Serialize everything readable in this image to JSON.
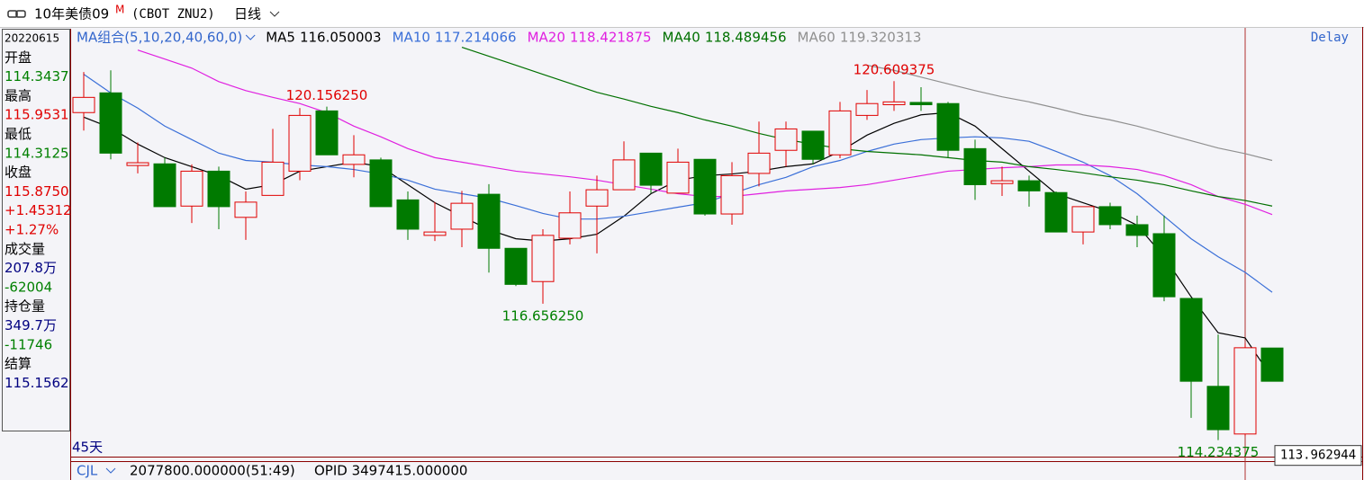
{
  "header": {
    "title": "10年美债09",
    "title_mark": "M",
    "symbol": "(CBOT ZNU2)",
    "period": "日线"
  },
  "info_panel": [
    {
      "text": "20220615",
      "color": "#000000"
    },
    {
      "text": "开盘",
      "color": "#000000"
    },
    {
      "text": "114.3437",
      "color": "#008000"
    },
    {
      "text": "最高",
      "color": "#000000"
    },
    {
      "text": "115.9531",
      "color": "#e00000"
    },
    {
      "text": "最低",
      "color": "#000000"
    },
    {
      "text": "114.3125",
      "color": "#008000"
    },
    {
      "text": "收盘",
      "color": "#000000"
    },
    {
      "text": "115.8750",
      "color": "#e00000"
    },
    {
      "text": "+1.45312",
      "color": "#e00000"
    },
    {
      "text": "+1.27%",
      "color": "#e00000"
    },
    {
      "text": "成交量",
      "color": "#000000"
    },
    {
      "text": "207.8万",
      "color": "#000080"
    },
    {
      "text": "-62004",
      "color": "#008000"
    },
    {
      "text": "持仓量",
      "color": "#000000"
    },
    {
      "text": "349.7万",
      "color": "#000080"
    },
    {
      "text": "-11746",
      "color": "#008000"
    },
    {
      "text": "结算",
      "color": "#000000"
    },
    {
      "text": "115.1562",
      "color": "#000080"
    }
  ],
  "chart_data": {
    "type": "candlestick",
    "ma_group": "MA组合(5,10,20,40,60,0)",
    "ma_group_color": "#3366cc",
    "delay": "Delay",
    "days_label": "45天",
    "up_color": "#e00000",
    "down_color": "#007a00",
    "ylim": [
      113.91,
      121.57
    ],
    "open": [
      120.05,
      120.4,
      119.11,
      119.14,
      118.39,
      119.01,
      118.19,
      118.58,
      119.01,
      120.08,
      119.13,
      119.21,
      118.5,
      117.87,
      117.98,
      118.6,
      117.64,
      117.05,
      117.82,
      118.39,
      118.68,
      119.33,
      118.62,
      119.22,
      118.25,
      118.97,
      119.38,
      119.72,
      119.3,
      120.0,
      120.19,
      120.23,
      120.21,
      119.41,
      118.79,
      118.84,
      118.63,
      117.93,
      118.38,
      118.06,
      117.9,
      116.75,
      115.19,
      114.34375,
      115.87
    ],
    "high": [
      120.77,
      120.8,
      119.52,
      119.25,
      119.13,
      119.09,
      118.65,
      119.76,
      120.13,
      120.15625,
      119.65,
      119.25,
      118.65,
      118.46,
      118.66,
      118.78,
      117.64,
      117.98,
      118.65,
      118.93,
      119.54,
      119.33,
      119.41,
      119.22,
      119.17,
      119.89,
      119.89,
      119.72,
      120.24,
      120.45,
      120.609375,
      120.5,
      120.24,
      119.57,
      119.09,
      118.93,
      118.65,
      118.38,
      118.45,
      118.22,
      118.22,
      116.75,
      116.11,
      115.953125,
      115.87
    ],
    "low": [
      119.73,
      119.22,
      118.97,
      118.38,
      118.09,
      117.98,
      117.79,
      118.58,
      118.85,
      119.3,
      118.9,
      118.38,
      117.79,
      117.77,
      117.66,
      117.21,
      116.97,
      116.65625,
      117.71,
      117.55,
      118.68,
      118.62,
      118.62,
      118.22,
      118.06,
      118.74,
      119.09,
      119.13,
      119.24,
      119.92,
      120.08,
      120.08,
      119.25,
      118.5,
      118.57,
      118.38,
      117.93,
      117.71,
      117.98,
      117.66,
      116.7,
      114.63,
      114.234375,
      114.3125,
      115.28
    ],
    "close": [
      120.32,
      119.33,
      119.16,
      118.38,
      119.01,
      118.38,
      118.46,
      119.17,
      120.0,
      119.3,
      119.3,
      118.38,
      117.98,
      117.93,
      118.44,
      117.64,
      117.0,
      117.87,
      118.27,
      118.68,
      119.21,
      118.76,
      119.17,
      118.25,
      118.93,
      119.33,
      119.76,
      119.22,
      120.08,
      120.21,
      120.24,
      120.19,
      119.38,
      118.77,
      118.84,
      118.66,
      117.93,
      118.38,
      118.06,
      117.87,
      116.78,
      115.28,
      114.42,
      115.875,
      115.28
    ],
    "series": [
      {
        "name": "MA5",
        "color": "#000000",
        "values": [
          119.97,
          119.78,
          119.49,
          119.25,
          119.09,
          118.93,
          118.69,
          118.77,
          119.01,
          119.09,
          119.17,
          119.09,
          118.77,
          118.45,
          118.21,
          117.97,
          117.81,
          117.77,
          117.81,
          117.89,
          118.21,
          118.61,
          118.85,
          118.93,
          118.96,
          119.01,
          119.09,
          119.14,
          119.36,
          119.65,
          119.86,
          120.01,
          120.05,
          119.81,
          119.41,
          119.01,
          118.61,
          118.45,
          118.29,
          118.05,
          117.49,
          116.78,
          116.14,
          116.050003,
          115.34
        ]
      },
      {
        "name": "MA10",
        "color": "#3a6fd8",
        "values": [
          120.73,
          120.4,
          120.13,
          119.81,
          119.57,
          119.33,
          119.2,
          119.17,
          119.12,
          119.09,
          119.04,
          118.96,
          118.85,
          118.69,
          118.61,
          118.53,
          118.4,
          118.26,
          118.16,
          118.16,
          118.21,
          118.29,
          118.37,
          118.45,
          118.61,
          118.77,
          118.9,
          119.09,
          119.2,
          119.36,
          119.49,
          119.57,
          119.6,
          119.62,
          119.6,
          119.54,
          119.36,
          119.17,
          118.93,
          118.61,
          118.21,
          117.81,
          117.49,
          117.214066,
          116.86
        ]
      },
      {
        "name": "MA20",
        "color": "#e020e0",
        "values": [
          null,
          null,
          121.16,
          121.0,
          120.84,
          120.6,
          120.44,
          120.32,
          120.21,
          120.05,
          119.81,
          119.62,
          119.41,
          119.25,
          119.17,
          119.09,
          119.01,
          118.96,
          118.91,
          118.85,
          118.77,
          118.69,
          118.61,
          118.56,
          118.56,
          118.61,
          118.66,
          118.69,
          118.72,
          118.77,
          118.85,
          118.93,
          119.01,
          119.04,
          119.07,
          119.09,
          119.12,
          119.12,
          119.09,
          119.04,
          118.93,
          118.77,
          118.56,
          118.421875,
          118.24
        ]
      },
      {
        "name": "MA40",
        "color": "#007000",
        "values": [
          null,
          null,
          null,
          null,
          null,
          null,
          null,
          null,
          null,
          null,
          null,
          null,
          null,
          null,
          121.21,
          121.05,
          120.89,
          120.73,
          120.57,
          120.41,
          120.29,
          120.16,
          120.05,
          119.92,
          119.81,
          119.68,
          119.57,
          119.49,
          119.41,
          119.36,
          119.33,
          119.3,
          119.25,
          119.2,
          119.17,
          119.09,
          119.04,
          118.98,
          118.91,
          118.85,
          118.77,
          118.66,
          118.56,
          118.489456,
          118.39
        ]
      },
      {
        "name": "MA60",
        "color": "#909090",
        "values": [
          null,
          null,
          null,
          null,
          null,
          null,
          null,
          null,
          null,
          null,
          null,
          null,
          null,
          null,
          null,
          null,
          null,
          null,
          null,
          null,
          null,
          null,
          null,
          null,
          null,
          null,
          null,
          null,
          null,
          120.89,
          120.8,
          120.68,
          120.56,
          120.44,
          120.33,
          120.24,
          120.13,
          120.01,
          119.92,
          119.81,
          119.68,
          119.55,
          119.42,
          119.320313,
          119.2
        ]
      }
    ],
    "annotations": [
      {
        "value": 120.15625,
        "label": "120.156250",
        "color": "#e00000"
      },
      {
        "value": 120.609375,
        "label": "120.609375",
        "color": "#e00000"
      },
      {
        "value": 116.65625,
        "label": "116.656250",
        "color": "#008000"
      },
      {
        "value": 114.234375,
        "label": "114.234375",
        "color": "#008000"
      }
    ],
    "crosshair_price": 113.962944
  },
  "footer": {
    "name": "CJL",
    "volume": "2077800.000000(51:49)",
    "opid": "OPID 3497415.000000"
  }
}
